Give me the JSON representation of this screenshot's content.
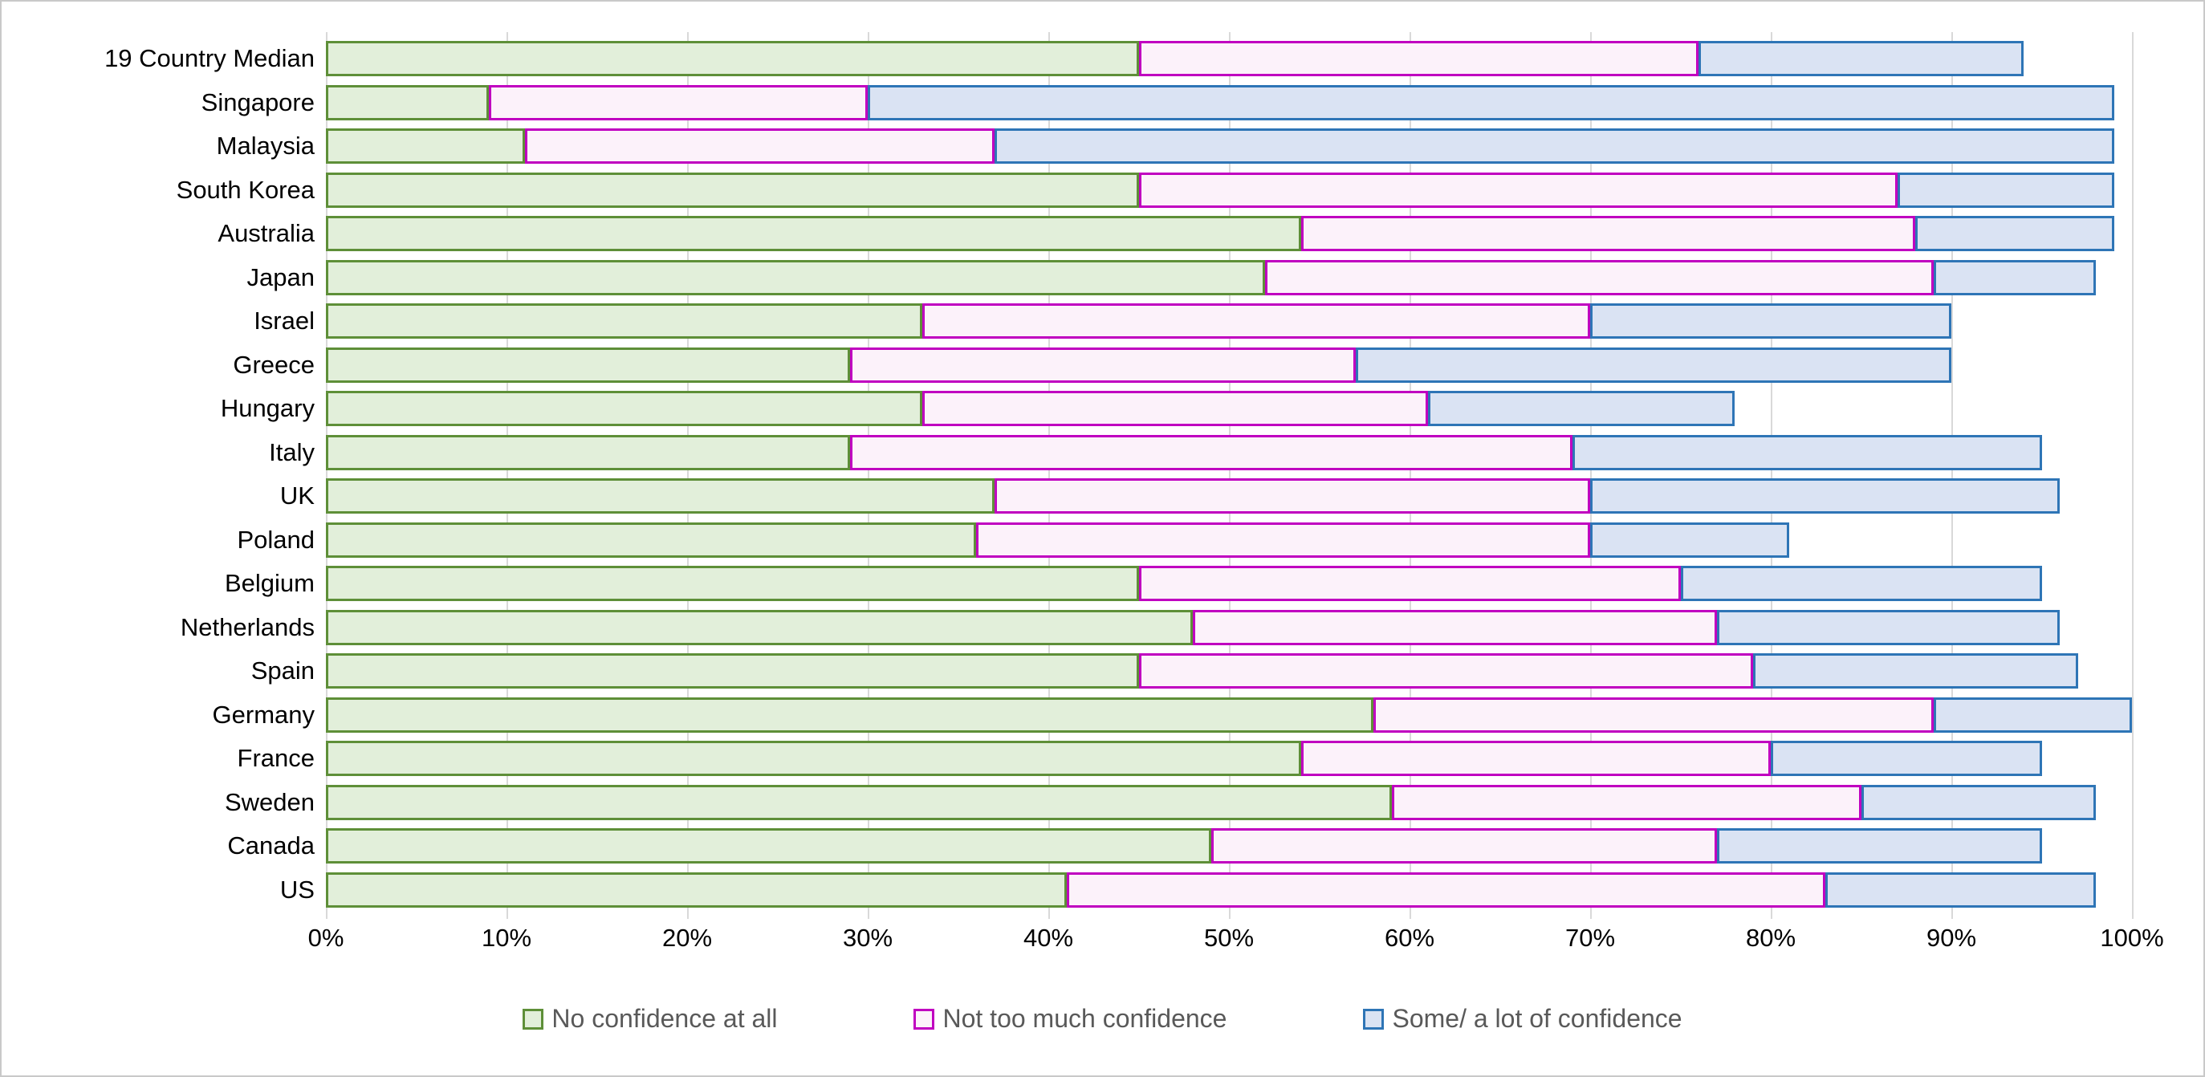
{
  "chart_data": {
    "type": "bar",
    "orientation": "horizontal",
    "stacked": true,
    "title": "",
    "categories": [
      "19 Country Median",
      "Singapore",
      "Malaysia",
      "South Korea",
      "Australia",
      "Japan",
      "Israel",
      "Greece",
      "Hungary",
      "Italy",
      "UK",
      "Poland",
      "Belgium",
      "Netherlands",
      "Spain",
      "Germany",
      "France",
      "Sweden",
      "Canada",
      "US"
    ],
    "series": [
      {
        "name": "No confidence at all",
        "fill": "#E2EFDA",
        "border": "#5E8F38",
        "values": [
          45,
          9,
          11,
          45,
          54,
          52,
          33,
          29,
          33,
          29,
          37,
          36,
          45,
          48,
          45,
          58,
          54,
          59,
          49,
          41
        ]
      },
      {
        "name": "Not too much confidence",
        "fill": "#FCF2FA",
        "border": "#C000C0",
        "values": [
          31,
          21,
          26,
          42,
          34,
          37,
          37,
          28,
          28,
          40,
          33,
          34,
          30,
          29,
          34,
          31,
          26,
          26,
          28,
          42
        ]
      },
      {
        "name": "Some/ a lot of confidence",
        "fill": "#DAE3F3",
        "border": "#2E75B6",
        "values": [
          18,
          69,
          62,
          12,
          11,
          9,
          20,
          33,
          17,
          26,
          26,
          11,
          20,
          19,
          18,
          11,
          15,
          13,
          18,
          15
        ]
      }
    ],
    "x_axis": {
      "min": 0,
      "max": 100,
      "tick_labels": [
        "0%",
        "10%",
        "20%",
        "30%",
        "40%",
        "50%",
        "60%",
        "70%",
        "80%",
        "90%",
        "100%"
      ],
      "gridlines": true,
      "gridline_color": "#D9D9D9"
    },
    "legend_position": "bottom",
    "legend_text_color": "#595959",
    "background_color": "#FFFFFF",
    "frame_border_color": "#C9C9C9"
  }
}
